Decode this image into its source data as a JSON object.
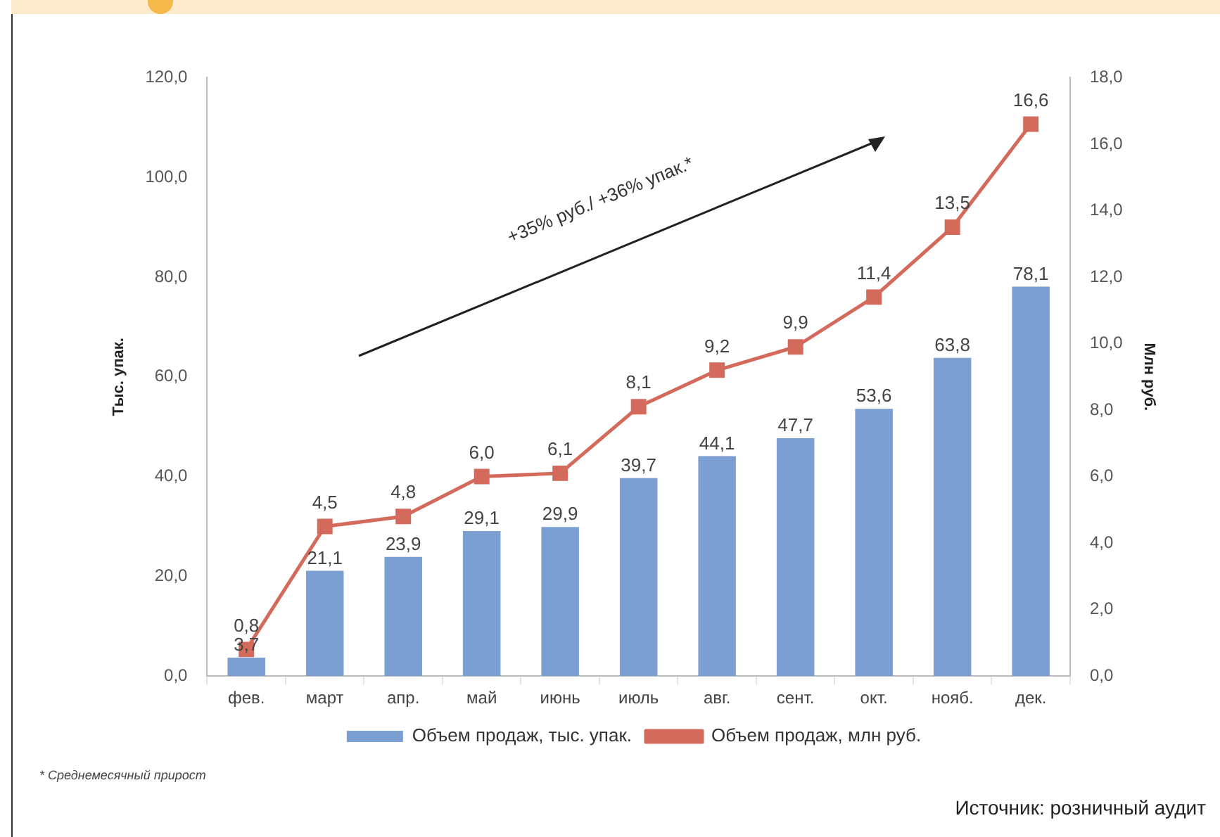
{
  "chart_data": {
    "type": "bar",
    "ylabel": "Тыс. упак.",
    "y2label": "Млн руб.",
    "categories": [
      "фев.",
      "март",
      "апр.",
      "май",
      "июнь",
      "июль",
      "авг.",
      "сент.",
      "окт.",
      "нояб.",
      "дек."
    ],
    "series": [
      {
        "name": "Объем продаж, тыс. упак.",
        "color": "#7b9fd0",
        "values": [
          3.7,
          21.1,
          23.9,
          29.1,
          29.9,
          39.7,
          44.1,
          47.7,
          53.6,
          63.8,
          78.1
        ],
        "value_labels": [
          "3,7",
          "21,1",
          "23,9",
          "29,1",
          "29,9",
          "39,7",
          "44,1",
          "47,7",
          "53,6",
          "63,8",
          "78,1"
        ]
      },
      {
        "name": "Объем продаж, млн руб.",
        "type": "line",
        "axis": "y2",
        "color": "#d46a5c",
        "marker": "square",
        "values": [
          0.8,
          4.5,
          4.8,
          6.0,
          6.1,
          8.1,
          9.2,
          9.9,
          11.4,
          13.5,
          16.6
        ],
        "value_labels": [
          "0,8",
          "4,5",
          "4,8",
          "6,0",
          "6,1",
          "8,1",
          "9,2",
          "9,9",
          "11,4",
          "13,5",
          "16,6"
        ]
      }
    ],
    "ylim": [
      0,
      120
    ],
    "yticks": [
      {
        "value": 0,
        "label": "0,0"
      },
      {
        "value": 20,
        "label": "20,0"
      },
      {
        "value": 40,
        "label": "40,0"
      },
      {
        "value": 60,
        "label": "60,0"
      },
      {
        "value": 80,
        "label": "80,0"
      },
      {
        "value": 100,
        "label": "100,0"
      },
      {
        "value": 120,
        "label": "120,0"
      }
    ],
    "y2lim": [
      0,
      18
    ],
    "y2ticks": [
      {
        "value": 0,
        "label": "0,0"
      },
      {
        "value": 2,
        "label": "2,0"
      },
      {
        "value": 4,
        "label": "4,0"
      },
      {
        "value": 6,
        "label": "6,0"
      },
      {
        "value": 8,
        "label": "8,0"
      },
      {
        "value": 10,
        "label": "10,0"
      },
      {
        "value": 12,
        "label": "12,0"
      },
      {
        "value": 14,
        "label": "14,0"
      },
      {
        "value": 16,
        "label": "16,0"
      },
      {
        "value": 18,
        "label": "18,0"
      }
    ],
    "grid": false,
    "legend": "bottom",
    "annotations": [
      "+35% руб./ +36% упак.*",
      "* Среднемесячный прирост",
      "Источник: розничный аудит"
    ]
  }
}
